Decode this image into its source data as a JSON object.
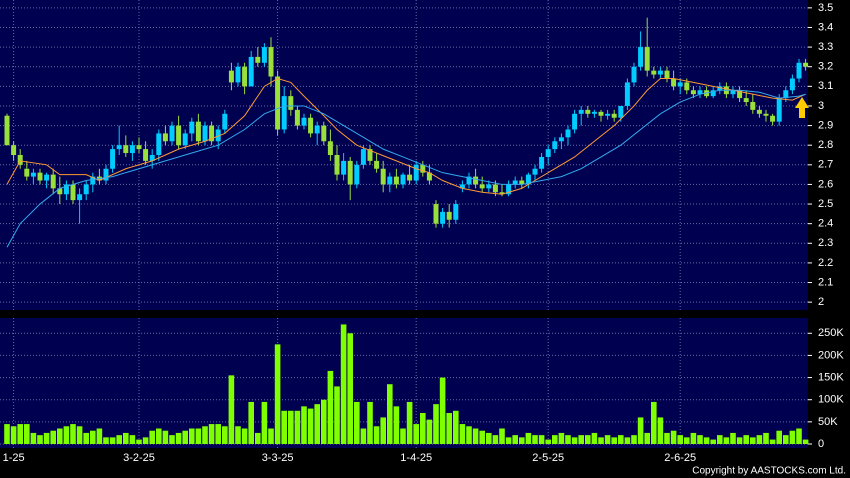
{
  "chart_data": {
    "type": "candlestick",
    "up_color": "#00ccff",
    "down_color": "#99e03a",
    "volume_color": "#80ff00",
    "grid": true,
    "xticks": [
      {
        "value": 1,
        "label": "1-25"
      },
      {
        "value": 20,
        "label": "3-2-25"
      },
      {
        "value": 41,
        "label": "3-3-25"
      },
      {
        "value": 62,
        "label": "1-4-25"
      },
      {
        "value": 82,
        "label": "2-5-25"
      },
      {
        "value": 102,
        "label": "2-6-25"
      }
    ],
    "ylim": [
      1.96,
      3.54
    ],
    "yticks": [
      2,
      2.1,
      2.2,
      2.3,
      2.4,
      2.5,
      2.6,
      2.7,
      2.8,
      2.9,
      3,
      3.1,
      3.2,
      3.3,
      3.4,
      3.5
    ],
    "ohlc": [
      [
        2.95,
        2.96,
        2.8,
        2.8
      ],
      [
        2.8,
        2.82,
        2.72,
        2.75
      ],
      [
        2.75,
        2.78,
        2.68,
        2.7
      ],
      [
        2.68,
        2.72,
        2.62,
        2.64
      ],
      [
        2.64,
        2.68,
        2.6,
        2.66
      ],
      [
        2.66,
        2.68,
        2.6,
        2.62
      ],
      [
        2.62,
        2.66,
        2.58,
        2.65
      ],
      [
        2.65,
        2.68,
        2.55,
        2.58
      ],
      [
        2.58,
        2.64,
        2.5,
        2.55
      ],
      [
        2.55,
        2.62,
        2.52,
        2.6
      ],
      [
        2.6,
        2.62,
        2.5,
        2.52
      ],
      [
        2.52,
        2.58,
        2.4,
        2.55
      ],
      [
        2.55,
        2.62,
        2.52,
        2.6
      ],
      [
        2.6,
        2.66,
        2.56,
        2.64
      ],
      [
        2.64,
        2.68,
        2.6,
        2.62
      ],
      [
        2.62,
        2.7,
        2.6,
        2.68
      ],
      [
        2.68,
        2.8,
        2.66,
        2.78
      ],
      [
        2.78,
        2.9,
        2.75,
        2.8
      ],
      [
        2.8,
        2.85,
        2.74,
        2.76
      ],
      [
        2.76,
        2.82,
        2.72,
        2.8
      ],
      [
        2.8,
        2.84,
        2.76,
        2.78
      ],
      [
        2.78,
        2.82,
        2.7,
        2.72
      ],
      [
        2.72,
        2.78,
        2.68,
        2.75
      ],
      [
        2.75,
        2.88,
        2.72,
        2.86
      ],
      [
        2.86,
        2.9,
        2.8,
        2.82
      ],
      [
        2.82,
        2.92,
        2.8,
        2.9
      ],
      [
        2.9,
        2.95,
        2.78,
        2.8
      ],
      [
        2.8,
        2.88,
        2.78,
        2.86
      ],
      [
        2.86,
        2.94,
        2.82,
        2.92
      ],
      [
        2.92,
        2.96,
        2.8,
        2.82
      ],
      [
        2.82,
        2.92,
        2.8,
        2.9
      ],
      [
        2.9,
        2.92,
        2.8,
        2.82
      ],
      [
        2.82,
        2.9,
        2.78,
        2.88
      ],
      [
        2.88,
        2.98,
        2.86,
        2.96
      ],
      [
        3.18,
        3.22,
        3.08,
        3.12
      ],
      [
        3.12,
        3.22,
        3.1,
        3.2
      ],
      [
        3.2,
        3.22,
        3.06,
        3.1
      ],
      [
        3.1,
        3.28,
        3.1,
        3.25
      ],
      [
        3.25,
        3.3,
        3.2,
        3.22
      ],
      [
        3.22,
        3.32,
        3.2,
        3.3
      ],
      [
        3.3,
        3.35,
        3.1,
        3.15
      ],
      [
        3.15,
        3.18,
        2.85,
        2.88
      ],
      [
        2.88,
        3.1,
        2.86,
        3.05
      ],
      [
        3.05,
        3.08,
        2.95,
        2.98
      ],
      [
        2.98,
        3,
        2.88,
        2.9
      ],
      [
        2.9,
        2.96,
        2.88,
        2.94
      ],
      [
        2.94,
        2.96,
        2.84,
        2.86
      ],
      [
        2.86,
        2.92,
        2.8,
        2.9
      ],
      [
        2.9,
        2.92,
        2.8,
        2.82
      ],
      [
        2.82,
        2.88,
        2.72,
        2.75
      ],
      [
        2.75,
        2.8,
        2.62,
        2.65
      ],
      [
        2.65,
        2.76,
        2.62,
        2.72
      ],
      [
        2.72,
        2.74,
        2.52,
        2.6
      ],
      [
        2.6,
        2.72,
        2.58,
        2.7
      ],
      [
        2.7,
        2.8,
        2.68,
        2.78
      ],
      [
        2.78,
        2.8,
        2.7,
        2.72
      ],
      [
        2.72,
        2.76,
        2.66,
        2.68
      ],
      [
        2.68,
        2.72,
        2.56,
        2.6
      ],
      [
        2.6,
        2.66,
        2.56,
        2.64
      ],
      [
        2.64,
        2.68,
        2.58,
        2.6
      ],
      [
        2.6,
        2.66,
        2.58,
        2.65
      ],
      [
        2.65,
        2.7,
        2.6,
        2.62
      ],
      [
        2.62,
        2.72,
        2.6,
        2.7
      ],
      [
        2.7,
        2.72,
        2.64,
        2.66
      ],
      [
        2.66,
        2.7,
        2.6,
        2.62
      ],
      [
        2.5,
        2.52,
        2.38,
        2.4
      ],
      [
        2.4,
        2.48,
        2.38,
        2.46
      ],
      [
        2.46,
        2.5,
        2.38,
        2.42
      ],
      [
        2.42,
        2.52,
        2.4,
        2.5
      ],
      [
        2.58,
        2.62,
        2.56,
        2.6
      ],
      [
        2.6,
        2.66,
        2.58,
        2.64
      ],
      [
        2.64,
        2.68,
        2.58,
        2.6
      ],
      [
        2.6,
        2.64,
        2.56,
        2.58
      ],
      [
        2.58,
        2.62,
        2.56,
        2.6
      ],
      [
        2.6,
        2.62,
        2.54,
        2.56
      ],
      [
        2.56,
        2.6,
        2.54,
        2.55
      ],
      [
        2.55,
        2.62,
        2.54,
        2.6
      ],
      [
        2.6,
        2.64,
        2.58,
        2.62
      ],
      [
        2.62,
        2.64,
        2.58,
        2.6
      ],
      [
        2.6,
        2.66,
        2.58,
        2.65
      ],
      [
        2.65,
        2.7,
        2.62,
        2.68
      ],
      [
        2.68,
        2.76,
        2.66,
        2.74
      ],
      [
        2.74,
        2.8,
        2.7,
        2.78
      ],
      [
        2.78,
        2.84,
        2.76,
        2.82
      ],
      [
        2.82,
        2.86,
        2.78,
        2.84
      ],
      [
        2.84,
        2.9,
        2.8,
        2.88
      ],
      [
        2.88,
        2.98,
        2.86,
        2.96
      ],
      [
        2.96,
        3,
        2.9,
        2.98
      ],
      [
        2.98,
        3,
        2.94,
        2.96
      ],
      [
        2.96,
        2.98,
        2.94,
        2.97
      ],
      [
        2.97,
        2.98,
        2.92,
        2.95
      ],
      [
        2.95,
        2.98,
        2.93,
        2.96
      ],
      [
        2.96,
        2.98,
        2.92,
        2.94
      ],
      [
        2.94,
        3,
        2.92,
        3
      ],
      [
        3,
        3.14,
        2.98,
        3.12
      ],
      [
        3.12,
        3.22,
        3.1,
        3.2
      ],
      [
        3.2,
        3.38,
        3.18,
        3.3
      ],
      [
        3.3,
        3.45,
        3.15,
        3.18
      ],
      [
        3.18,
        3.2,
        3.14,
        3.16
      ],
      [
        3.16,
        3.2,
        3.14,
        3.18
      ],
      [
        3.18,
        3.2,
        3.12,
        3.14
      ],
      [
        3.14,
        3.18,
        3.08,
        3.1
      ],
      [
        3.1,
        3.14,
        3.06,
        3.12
      ],
      [
        3.12,
        3.14,
        3.06,
        3.08
      ],
      [
        3.08,
        3.1,
        3.04,
        3.06
      ],
      [
        3.06,
        3.1,
        3.04,
        3.08
      ],
      [
        3.08,
        3.1,
        3.04,
        3.05
      ],
      [
        3.05,
        3.1,
        3.04,
        3.08
      ],
      [
        3.08,
        3.12,
        3.06,
        3.1
      ],
      [
        3.1,
        3.12,
        3.04,
        3.06
      ],
      [
        3.06,
        3.1,
        3.04,
        3.08
      ],
      [
        3.08,
        3.1,
        3.02,
        3.04
      ],
      [
        3.04,
        3.08,
        3,
        3.02
      ],
      [
        3.02,
        3.06,
        2.96,
        2.98
      ],
      [
        2.98,
        3,
        2.94,
        2.96
      ],
      [
        2.96,
        2.98,
        2.92,
        2.95
      ],
      [
        2.95,
        2.96,
        2.9,
        2.92
      ],
      [
        2.92,
        3.06,
        2.9,
        3.04
      ],
      [
        3.04,
        3.1,
        3.02,
        3.08
      ],
      [
        3.08,
        3.16,
        3.06,
        3.14
      ],
      [
        3.14,
        3.24,
        3.12,
        3.22
      ],
      [
        3.22,
        3.24,
        3.18,
        3.2
      ]
    ],
    "moving_averages": [
      {
        "color": "#ff9933",
        "x": [
          0,
          2,
          6,
          8,
          12,
          14,
          18,
          22,
          26,
          30,
          33,
          36,
          39,
          41,
          43,
          45,
          48,
          50,
          53,
          56,
          59,
          62,
          64,
          66,
          69,
          72,
          75,
          78,
          80,
          83,
          86,
          89,
          92,
          95,
          97,
          99,
          101,
          104,
          107,
          110,
          113,
          116,
          119,
          121
        ],
        "values": [
          2.6,
          2.72,
          2.7,
          2.65,
          2.65,
          2.62,
          2.68,
          2.72,
          2.78,
          2.82,
          2.86,
          2.95,
          3.1,
          3.14,
          3.12,
          3.05,
          2.95,
          2.88,
          2.8,
          2.76,
          2.72,
          2.68,
          2.66,
          2.62,
          2.58,
          2.56,
          2.55,
          2.58,
          2.62,
          2.68,
          2.74,
          2.82,
          2.9,
          3,
          3.08,
          3.14,
          3.14,
          3.12,
          3.1,
          3.08,
          3.06,
          3.04,
          3.03,
          3.06
        ]
      },
      {
        "color": "#33aaee",
        "x": [
          0,
          2,
          5,
          8,
          12,
          16,
          20,
          24,
          28,
          32,
          36,
          39,
          42,
          45,
          48,
          51,
          54,
          57,
          60,
          63,
          66,
          69,
          72,
          75,
          78,
          81,
          84,
          87,
          90,
          93,
          96,
          99,
          102,
          105,
          108,
          111,
          114,
          117,
          120,
          121
        ],
        "values": [
          2.28,
          2.4,
          2.5,
          2.58,
          2.62,
          2.64,
          2.68,
          2.72,
          2.76,
          2.8,
          2.88,
          2.96,
          3,
          3,
          2.96,
          2.9,
          2.84,
          2.78,
          2.74,
          2.7,
          2.66,
          2.64,
          2.62,
          2.6,
          2.6,
          2.62,
          2.64,
          2.68,
          2.74,
          2.8,
          2.88,
          2.96,
          3.02,
          3.06,
          3.08,
          3.08,
          3.07,
          3.04,
          3.05,
          3.06
        ]
      }
    ],
    "volume": [
      45,
      40,
      45,
      45,
      25,
      20,
      25,
      30,
      35,
      40,
      45,
      40,
      25,
      30,
      35,
      15,
      15,
      20,
      25,
      20,
      10,
      15,
      30,
      35,
      30,
      20,
      25,
      30,
      35,
      35,
      40,
      45,
      45,
      40,
      155,
      40,
      35,
      95,
      25,
      95,
      35,
      225,
      75,
      75,
      75,
      85,
      80,
      90,
      100,
      165,
      130,
      270,
      250,
      95,
      35,
      95,
      40,
      60,
      135,
      85,
      35,
      95,
      45,
      70,
      55,
      90,
      150,
      70,
      75,
      45,
      40,
      35,
      30,
      25,
      20,
      35,
      15,
      20,
      15,
      25,
      20,
      20,
      10,
      20,
      25,
      20,
      15,
      20,
      20,
      25,
      15,
      20,
      15,
      20,
      15,
      20,
      60,
      25,
      95,
      60,
      25,
      30,
      20,
      15,
      25,
      20,
      15,
      10,
      20,
      15,
      25,
      15,
      20,
      15,
      20,
      25,
      10,
      30,
      20,
      30,
      35,
      10
    ],
    "volume_ylim": [
      0,
      280
    ],
    "volume_ticks": [
      0,
      {
        "value": 50,
        "label": "50K"
      },
      {
        "value": 100,
        "label": "100K"
      },
      {
        "value": 150,
        "label": "150K"
      },
      {
        "value": 200,
        "label": "200K"
      },
      {
        "value": 250,
        "label": "250K"
      }
    ],
    "copyright": "Copyright by AASTOCKS.com Ltd."
  }
}
